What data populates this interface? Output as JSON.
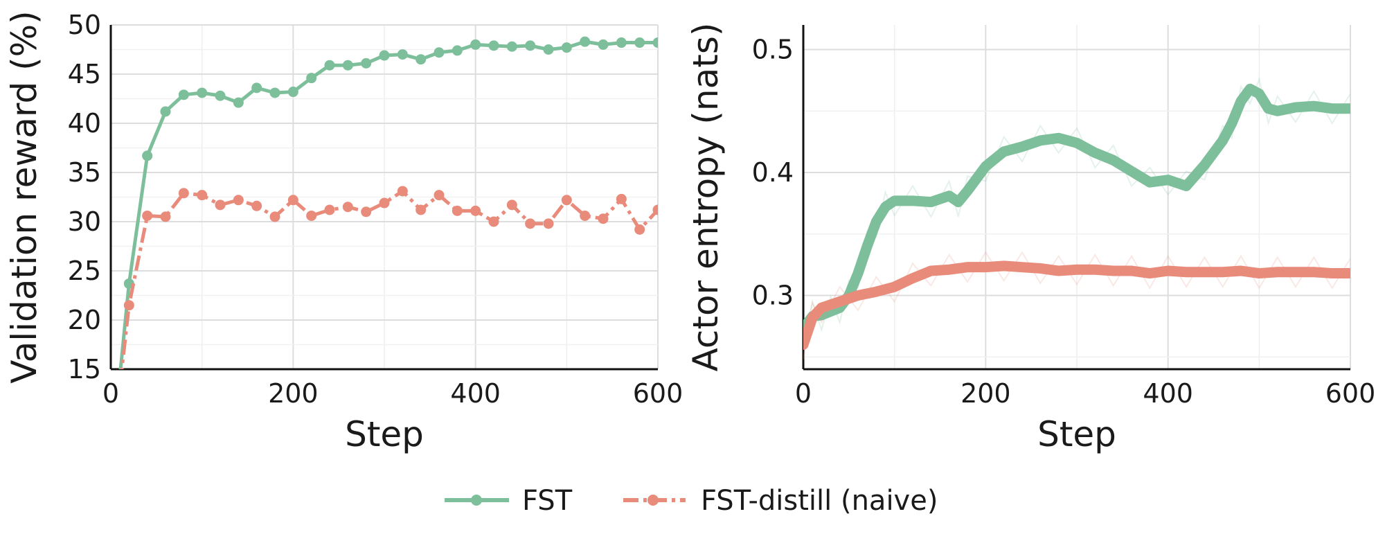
{
  "legend": {
    "items": [
      {
        "label": "FST",
        "color": "#7dbf9a"
      },
      {
        "label": "FST-distill (naive)",
        "color": "#e88b7b"
      }
    ]
  },
  "chart_data": [
    {
      "type": "line",
      "xlabel": "Step",
      "ylabel": "Validation reward (%)",
      "xlim": [
        0,
        600
      ],
      "ylim": [
        15,
        50
      ],
      "xticks": [
        0,
        200,
        400,
        600
      ],
      "yticks": [
        15,
        20,
        25,
        30,
        35,
        40,
        45,
        50
      ],
      "grid": true,
      "series": [
        {
          "name": "FST",
          "color": "#7dbf9a",
          "x": [
            0,
            20,
            40,
            60,
            80,
            100,
            120,
            140,
            160,
            180,
            200,
            220,
            240,
            260,
            280,
            300,
            320,
            340,
            360,
            380,
            400,
            420,
            440,
            460,
            480,
            500,
            520,
            540,
            560,
            580,
            600
          ],
          "values": [
            5.0,
            23.7,
            36.7,
            41.2,
            42.9,
            43.1,
            42.8,
            42.1,
            43.6,
            43.1,
            43.2,
            44.6,
            45.9,
            45.9,
            46.1,
            46.9,
            47.0,
            46.5,
            47.2,
            47.4,
            48.0,
            47.9,
            47.8,
            47.9,
            47.5,
            47.7,
            48.3,
            48.0,
            48.2,
            48.2,
            48.2
          ]
        },
        {
          "name": "FST-distill (naive)",
          "color": "#e88b7b",
          "x": [
            0,
            20,
            40,
            60,
            80,
            100,
            120,
            140,
            160,
            180,
            200,
            220,
            240,
            260,
            280,
            300,
            320,
            340,
            360,
            380,
            400,
            420,
            440,
            460,
            480,
            500,
            520,
            540,
            560,
            580,
            600
          ],
          "values": [
            5.0,
            21.5,
            30.6,
            30.5,
            32.9,
            32.7,
            31.7,
            32.2,
            31.6,
            30.5,
            32.2,
            30.6,
            31.2,
            31.5,
            31.0,
            31.9,
            33.1,
            31.2,
            32.7,
            31.1,
            31.1,
            30.0,
            31.7,
            29.8,
            29.8,
            32.2,
            30.6,
            30.3,
            32.3,
            29.2,
            31.2
          ]
        }
      ]
    },
    {
      "type": "line",
      "xlabel": "Step",
      "ylabel": "Actor entropy (nats)",
      "xlim": [
        0,
        600
      ],
      "ylim": [
        0.24,
        0.52
      ],
      "xticks": [
        0,
        200,
        400,
        600
      ],
      "yticks": [
        0.3,
        0.4,
        0.5
      ],
      "grid": true,
      "series": [
        {
          "name": "FST",
          "color": "#7dbf9a",
          "smoothed": {
            "x": [
              0,
              10,
              20,
              30,
              40,
              50,
              60,
              70,
              80,
              90,
              100,
              120,
              140,
              160,
              170,
              180,
              200,
              220,
              240,
              260,
              280,
              300,
              320,
              340,
              360,
              380,
              400,
              420,
              440,
              460,
              470,
              480,
              490,
              500,
              510,
              520,
              540,
              560,
              580,
              600
            ],
            "values": [
              0.273,
              0.283,
              0.284,
              0.287,
              0.29,
              0.3,
              0.318,
              0.34,
              0.36,
              0.372,
              0.377,
              0.377,
              0.376,
              0.381,
              0.376,
              0.385,
              0.405,
              0.417,
              0.421,
              0.426,
              0.428,
              0.424,
              0.416,
              0.41,
              0.401,
              0.392,
              0.394,
              0.389,
              0.406,
              0.426,
              0.44,
              0.458,
              0.468,
              0.464,
              0.452,
              0.45,
              0.453,
              0.454,
              0.452,
              0.452
            ]
          }
        },
        {
          "name": "FST-distill (naive)",
          "color": "#e88b7b",
          "smoothed": {
            "x": [
              0,
              10,
              20,
              40,
              60,
              80,
              100,
              120,
              140,
              160,
              180,
              200,
              220,
              240,
              260,
              280,
              300,
              320,
              340,
              360,
              380,
              400,
              420,
              440,
              460,
              480,
              500,
              520,
              540,
              560,
              580,
              600
            ],
            "values": [
              0.26,
              0.282,
              0.29,
              0.295,
              0.3,
              0.303,
              0.307,
              0.314,
              0.32,
              0.321,
              0.323,
              0.323,
              0.324,
              0.323,
              0.322,
              0.32,
              0.321,
              0.321,
              0.32,
              0.32,
              0.318,
              0.32,
              0.319,
              0.319,
              0.319,
              0.32,
              0.318,
              0.319,
              0.319,
              0.319,
              0.318,
              0.318
            ]
          }
        }
      ]
    }
  ]
}
